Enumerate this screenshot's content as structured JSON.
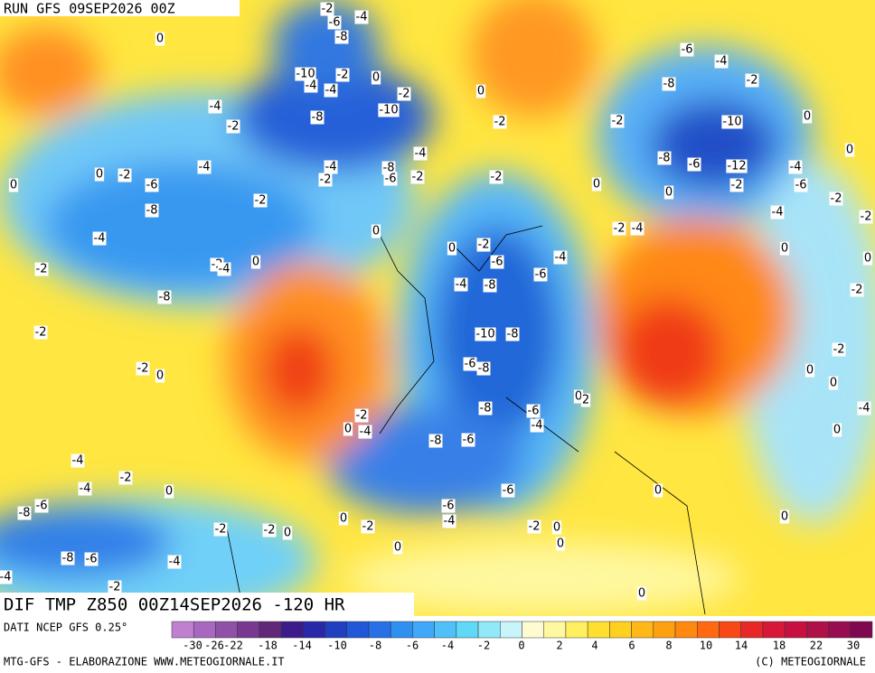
{
  "header": {
    "run": "RUN GFS 09SEP2026 00Z"
  },
  "map_title": "DIF TMP Z850 00Z14SEP2026 -120 HR",
  "footer": {
    "source": "DATI NCEP GFS 0.25°",
    "credit": "MTG-GFS - ELABORAZIONE WWW.METEOGIORNALE.IT",
    "copyright": "(C) METEOGIORNALE"
  },
  "colorbar": {
    "colors": [
      "#c080d0",
      "#a868c0",
      "#9050a8",
      "#783890",
      "#602878",
      "#3c1c8c",
      "#2828a8",
      "#2040c0",
      "#2058d8",
      "#2870e8",
      "#3090f0",
      "#40a8f8",
      "#50c0f8",
      "#60d8f8",
      "#90e8f8",
      "#c8f4fc",
      "#fffbd0",
      "#fff8a0",
      "#fff060",
      "#ffe030",
      "#ffd020",
      "#ffb818",
      "#ffa010",
      "#ff8810",
      "#ff6a10",
      "#f84818",
      "#e82828",
      "#d81838",
      "#c81040",
      "#b01048",
      "#980c50",
      "#800850"
    ],
    "labels": [
      "-30",
      "-26",
      "-22",
      "-18",
      "-14",
      "-10",
      "-8",
      "-6",
      "-4",
      "-2",
      "0",
      "2",
      "4",
      "6",
      "8",
      "10",
      "14",
      "18",
      "22",
      "30"
    ]
  },
  "map_labels": [
    "-2",
    "-6",
    "-4",
    "-8",
    "0",
    "-10",
    "-2",
    "-4",
    "-4",
    "0",
    "-2",
    "0",
    "-6",
    "-4",
    "-8",
    "-2",
    "-4",
    "-8",
    "-10",
    "-2",
    "-2",
    "-10",
    "0",
    "-2",
    "-4",
    "-4",
    "-8",
    "-4",
    "-8",
    "-6",
    "-12",
    "-4",
    "0",
    "0",
    "-2",
    "-6",
    "-2",
    "-6",
    "-2",
    "-2",
    "0",
    "0",
    "-2",
    "-6",
    "-2",
    "0",
    "-8",
    "-2",
    "-4",
    "-2",
    "-2",
    "-4",
    "0",
    "-4",
    "0",
    "-2",
    "0",
    "-2",
    "-2",
    "-4",
    "0",
    "-6",
    "-6",
    "-4",
    "-4",
    "-8",
    "-8",
    "-2",
    "0",
    "-2",
    "-10",
    "-8",
    "-2",
    "-2",
    "0",
    "-6",
    "-8",
    "0",
    "0",
    "-8",
    "-6",
    "0",
    "2",
    "-2",
    "-4",
    "0",
    "-4",
    "0",
    "-4",
    "-8",
    "-6",
    "-4",
    "-2",
    "-4",
    "0",
    "-6",
    "0",
    "-6",
    "-8",
    "-6",
    "-4",
    "0",
    "-2",
    "-2",
    "0",
    "0",
    "-2",
    "-2",
    "0",
    "0",
    "0",
    "-8",
    "-6",
    "-4",
    "-2",
    "-4",
    "0"
  ]
}
